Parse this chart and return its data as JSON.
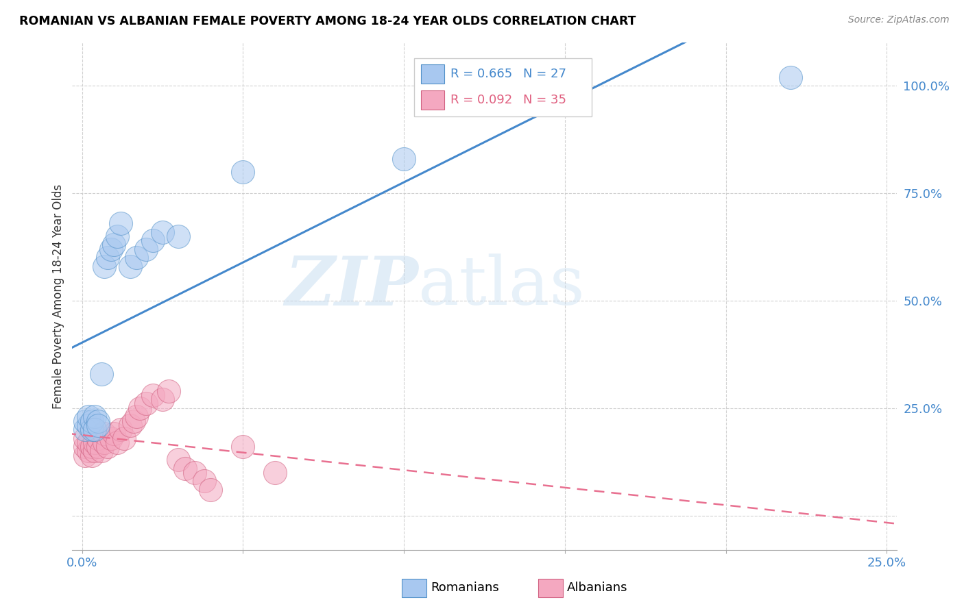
{
  "title": "ROMANIAN VS ALBANIAN FEMALE POVERTY AMONG 18-24 YEAR OLDS CORRELATION CHART",
  "source": "Source: ZipAtlas.com",
  "ylabel": "Female Poverty Among 18-24 Year Olds",
  "xlim": [
    -0.003,
    0.253
  ],
  "ylim": [
    -0.08,
    1.1
  ],
  "blue_color": "#A8C8F0",
  "pink_color": "#F4A8C0",
  "blue_edge": "#5090C8",
  "pink_edge": "#D06080",
  "blue_line": "#4488CC",
  "pink_line": "#E87090",
  "watermark_zip": "ZIP",
  "watermark_atlas": "atlas",
  "romanian_x": [
    0.001,
    0.001,
    0.002,
    0.002,
    0.003,
    0.003,
    0.004,
    0.004,
    0.005,
    0.005,
    0.006,
    0.007,
    0.008,
    0.009,
    0.01,
    0.011,
    0.012,
    0.015,
    0.017,
    0.02,
    0.022,
    0.025,
    0.03,
    0.05,
    0.1,
    0.15,
    0.22
  ],
  "romanian_y": [
    0.2,
    0.22,
    0.21,
    0.23,
    0.2,
    0.22,
    0.23,
    0.2,
    0.22,
    0.21,
    0.33,
    0.58,
    0.6,
    0.62,
    0.63,
    0.65,
    0.68,
    0.58,
    0.6,
    0.62,
    0.64,
    0.66,
    0.65,
    0.8,
    0.83,
    1.0,
    1.02
  ],
  "albanian_x": [
    0.001,
    0.001,
    0.001,
    0.002,
    0.002,
    0.003,
    0.003,
    0.004,
    0.004,
    0.005,
    0.005,
    0.006,
    0.007,
    0.007,
    0.008,
    0.009,
    0.01,
    0.011,
    0.012,
    0.013,
    0.015,
    0.016,
    0.017,
    0.018,
    0.02,
    0.022,
    0.025,
    0.027,
    0.03,
    0.032,
    0.035,
    0.038,
    0.04,
    0.05,
    0.06
  ],
  "albanian_y": [
    0.14,
    0.16,
    0.18,
    0.15,
    0.17,
    0.14,
    0.16,
    0.15,
    0.17,
    0.16,
    0.18,
    0.15,
    0.17,
    0.19,
    0.16,
    0.18,
    0.19,
    0.17,
    0.2,
    0.18,
    0.21,
    0.22,
    0.23,
    0.25,
    0.26,
    0.28,
    0.27,
    0.29,
    0.13,
    0.11,
    0.1,
    0.08,
    0.06,
    0.16,
    0.1
  ],
  "ytick_vals": [
    0.0,
    0.25,
    0.5,
    0.75,
    1.0
  ],
  "ytick_labels": [
    "",
    "25.0%",
    "50.0%",
    "75.0%",
    "100.0%"
  ],
  "xtick_vals": [
    0.0,
    0.05,
    0.1,
    0.15,
    0.2,
    0.25
  ],
  "xtick_labels": [
    "0.0%",
    "",
    "",
    "",
    "",
    "25.0%"
  ]
}
